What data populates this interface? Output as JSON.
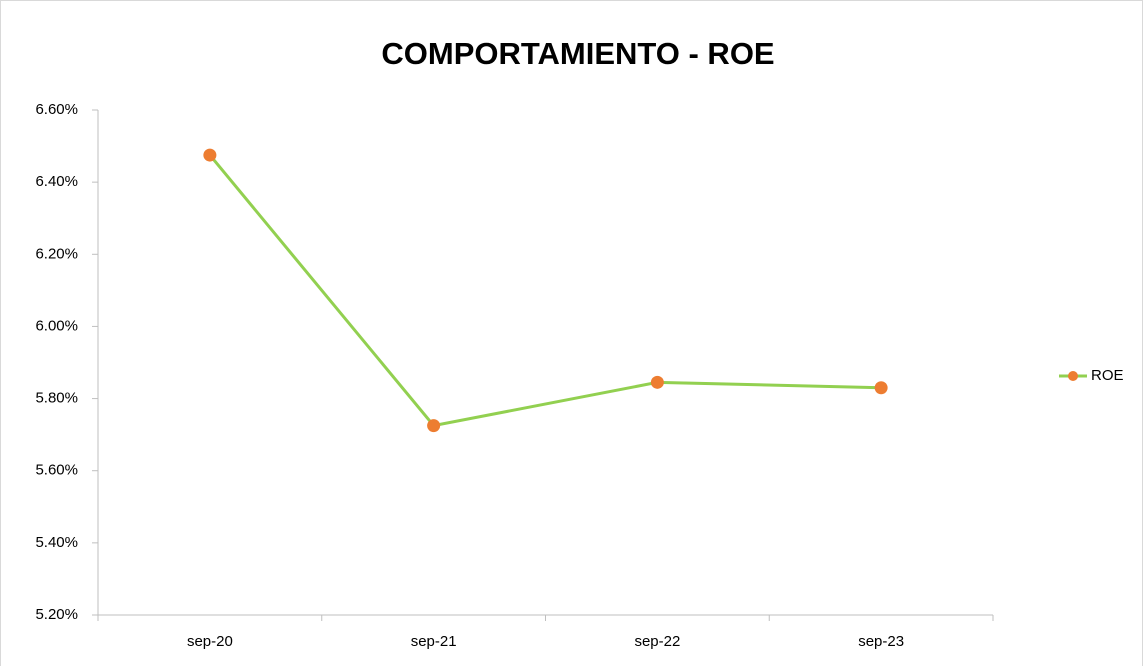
{
  "chart_data": {
    "type": "line",
    "title": "COMPORTAMIENTO - ROE",
    "categories": [
      "sep-20",
      "sep-21",
      "sep-22",
      "sep-23"
    ],
    "series": [
      {
        "name": "ROE",
        "color": "#92d050",
        "marker_color": "#ed7d31",
        "values": [
          6.475,
          5.725,
          5.845,
          5.83
        ]
      }
    ],
    "ylim": [
      5.2,
      6.6
    ],
    "yticks": [
      {
        "value": 5.2,
        "label": "5.20%"
      },
      {
        "value": 5.4,
        "label": "5.40%"
      },
      {
        "value": 5.6,
        "label": "5.60%"
      },
      {
        "value": 5.8,
        "label": "5.80%"
      },
      {
        "value": 6.0,
        "label": "6.00%"
      },
      {
        "value": 6.2,
        "label": "6.20%"
      },
      {
        "value": 6.4,
        "label": "6.40%"
      },
      {
        "value": 6.6,
        "label": "6.60%"
      }
    ],
    "grid": false,
    "legend": "right"
  }
}
